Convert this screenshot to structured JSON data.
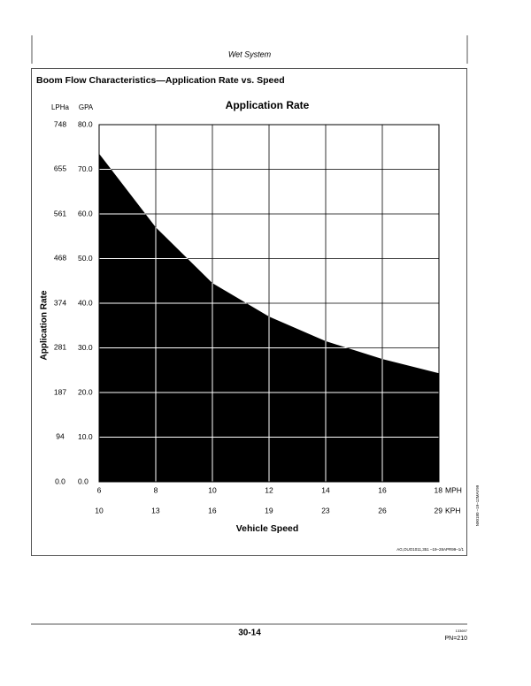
{
  "page_header": "Wet System",
  "section_title": "Boom Flow Characteristics—Application Rate vs. Speed",
  "chart_data": {
    "type": "area",
    "title": "Application Rate",
    "x_label": "Vehicle Speed",
    "y_label": "Application Rate",
    "x_units": "MPH",
    "x2_units": "KPH",
    "y_units": "GPA",
    "y2_units": "LPHa",
    "x": [
      6,
      8,
      10,
      12,
      14,
      16,
      18
    ],
    "series": [
      {
        "color": "#000000",
        "values": [
          73.5,
          57,
          44.5,
          37,
          31.5,
          27.5,
          24.3
        ]
      }
    ],
    "xlim": [
      6,
      18
    ],
    "xticks": [
      6,
      8,
      10,
      12,
      14,
      16,
      18
    ],
    "x2lim": [
      9.66,
      28.97
    ],
    "x2ticks": [
      {
        "value": 9.66,
        "label": "10"
      },
      {
        "value": 12.87,
        "label": "13"
      },
      {
        "value": 16.09,
        "label": "16"
      },
      {
        "value": 19.31,
        "label": "19"
      },
      {
        "value": 22.53,
        "label": "23"
      },
      {
        "value": 25.75,
        "label": "26"
      },
      {
        "value": 28.97,
        "label": "29"
      }
    ],
    "ylim": [
      0,
      80
    ],
    "yticks": [
      {
        "value": 0,
        "label": "0.0"
      },
      {
        "value": 10,
        "label": "10.0"
      },
      {
        "value": 20,
        "label": "20.0"
      },
      {
        "value": 30,
        "label": "30.0"
      },
      {
        "value": 40,
        "label": "40.0"
      },
      {
        "value": 50,
        "label": "50.0"
      },
      {
        "value": 60,
        "label": "60.0"
      },
      {
        "value": 70,
        "label": "70.0"
      },
      {
        "value": 80,
        "label": "80.0"
      }
    ],
    "y2lim": [
      0,
      748
    ],
    "y2ticks": [
      {
        "value": 0,
        "label": "0.0"
      },
      94,
      187,
      281,
      374,
      468,
      561,
      655,
      748
    ],
    "grid": true
  },
  "side_code": "N90180 –19–12MAY99",
  "doc_ref": "AG,OUO1011,351 –19–28APR99–1/1",
  "footer": {
    "page": "30-14",
    "code": "133697",
    "pn": "PN=210"
  }
}
